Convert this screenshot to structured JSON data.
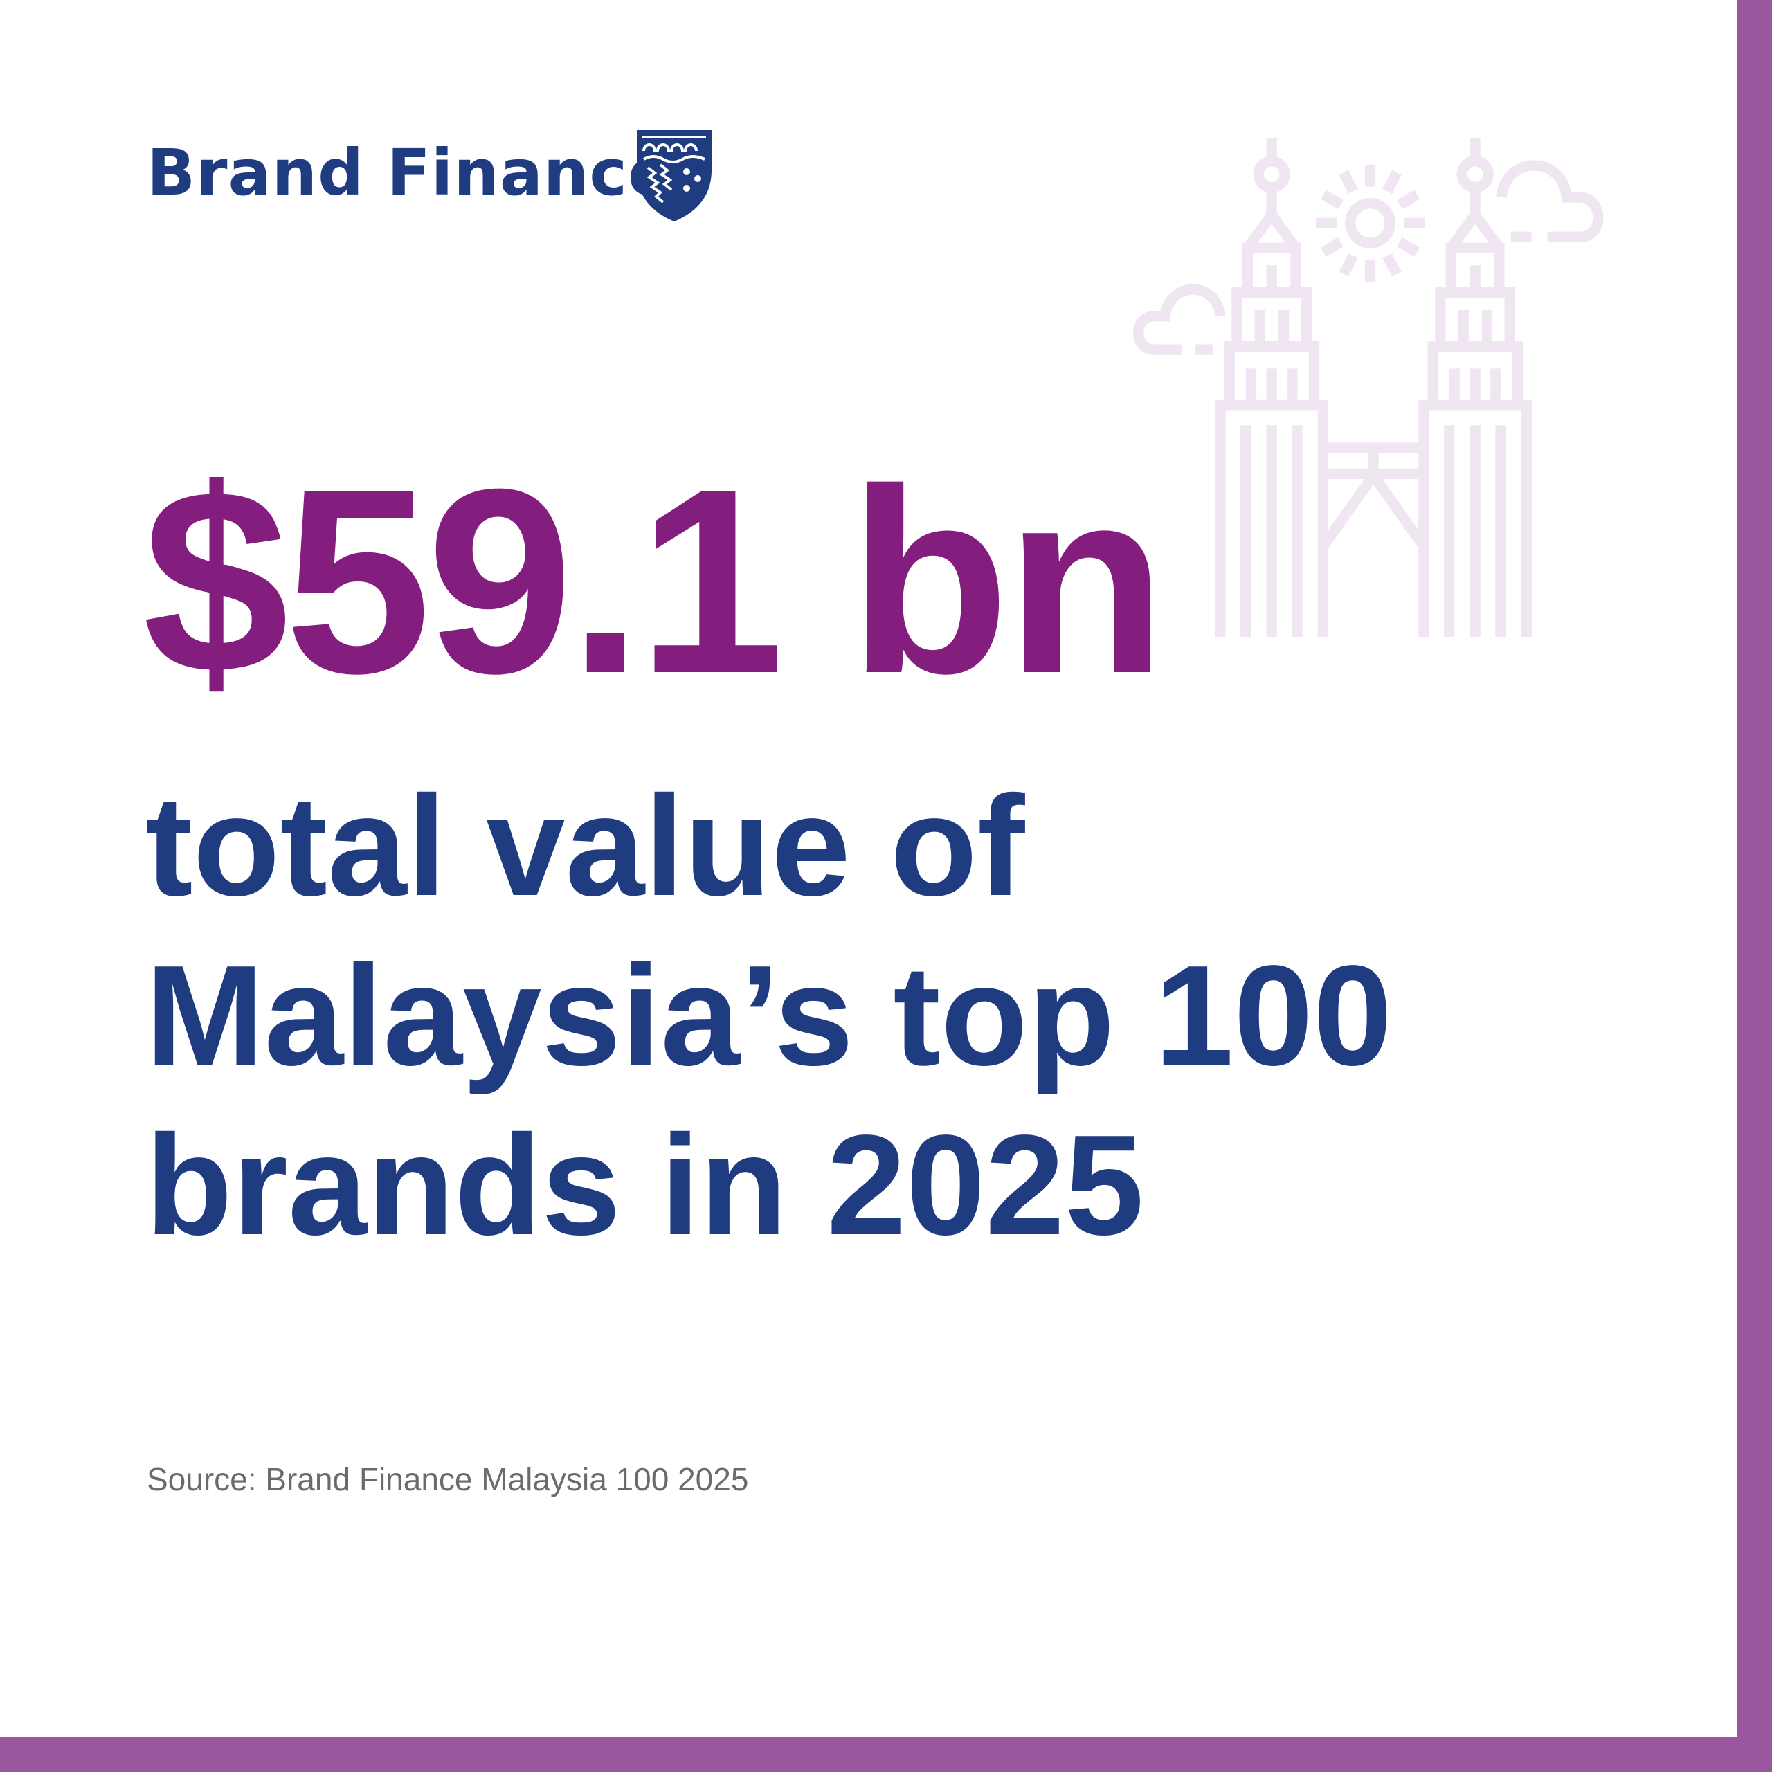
{
  "brand": {
    "name": "Brand Finance",
    "registered_mark": "®",
    "crest_icon": "shield-crest-icon"
  },
  "headline": {
    "value": "$59.1 bn"
  },
  "subtitle": {
    "lines": [
      "total value of",
      "Malaysia’s top 100",
      "brands in 2025"
    ]
  },
  "source": "Source: Brand Finance Malaysia 100 2025",
  "illustration": "petronas-twin-towers-icon",
  "colors": {
    "headline": "#841E7E",
    "text": "#203C80",
    "border": "#9B56A0",
    "illustration": "#EFE6F2",
    "source": "#6B6B6B"
  }
}
